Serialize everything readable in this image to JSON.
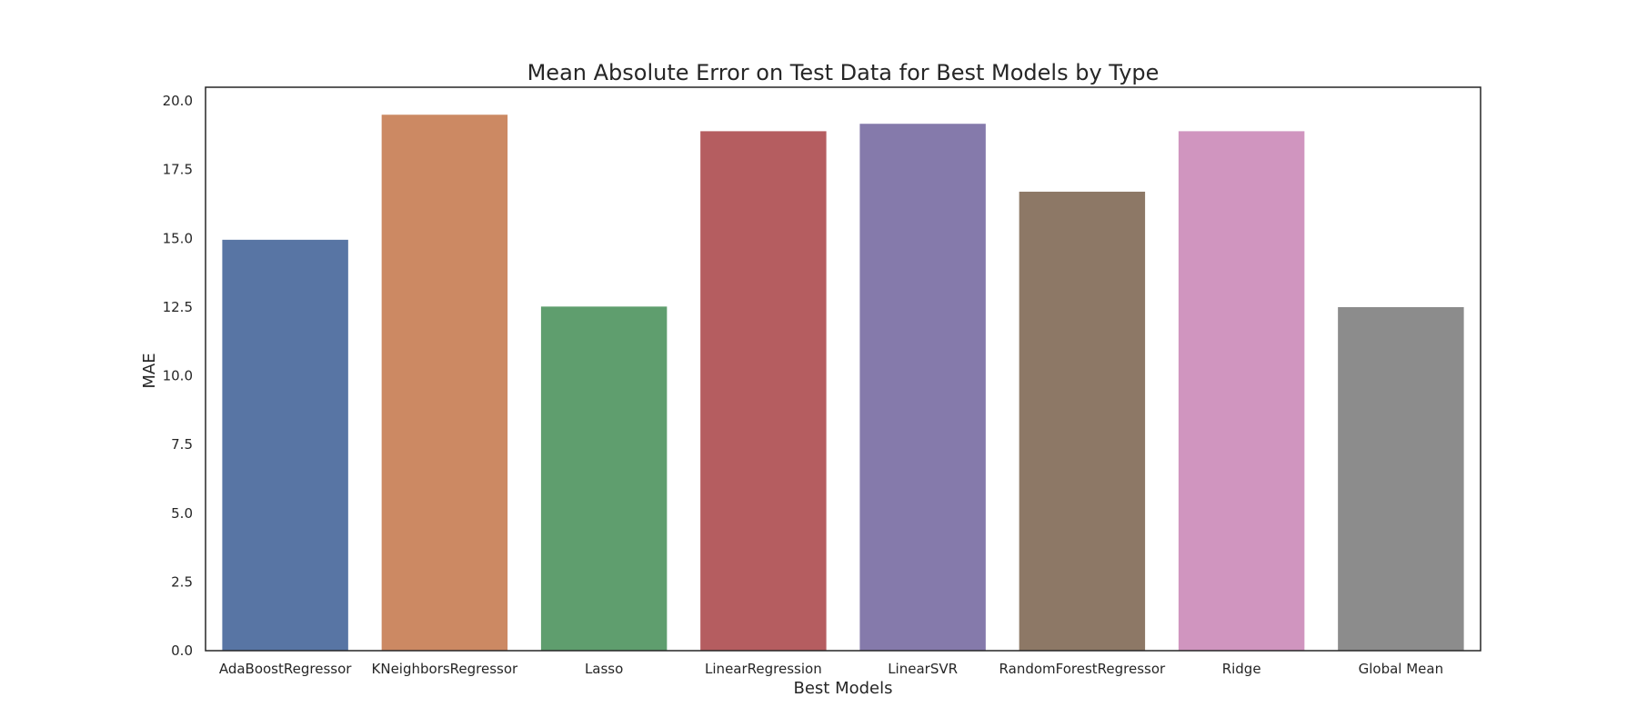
{
  "chart_data": {
    "type": "bar",
    "title": "Mean Absolute Error on Test Data for Best Models by Type",
    "xlabel": "Best Models",
    "ylabel": "MAE",
    "categories": [
      "AdaBoostRegressor",
      "KNeighborsRegressor",
      "Lasso",
      "LinearRegression",
      "LinearSVR",
      "RandomForestRegressor",
      "Ridge",
      "Global Mean"
    ],
    "values": [
      14.95,
      19.5,
      12.52,
      18.9,
      19.17,
      16.7,
      18.9,
      12.5
    ],
    "colors": [
      "#5875a4",
      "#cc8963",
      "#5f9e6e",
      "#b55d60",
      "#857aab",
      "#8d7866",
      "#d095bf",
      "#8c8c8c"
    ],
    "ylim": [
      0,
      20.5
    ],
    "yticks": [
      "0.0",
      "2.5",
      "5.0",
      "7.5",
      "10.0",
      "12.5",
      "15.0",
      "17.5",
      "20.0"
    ],
    "grid": false,
    "legend": "none"
  }
}
